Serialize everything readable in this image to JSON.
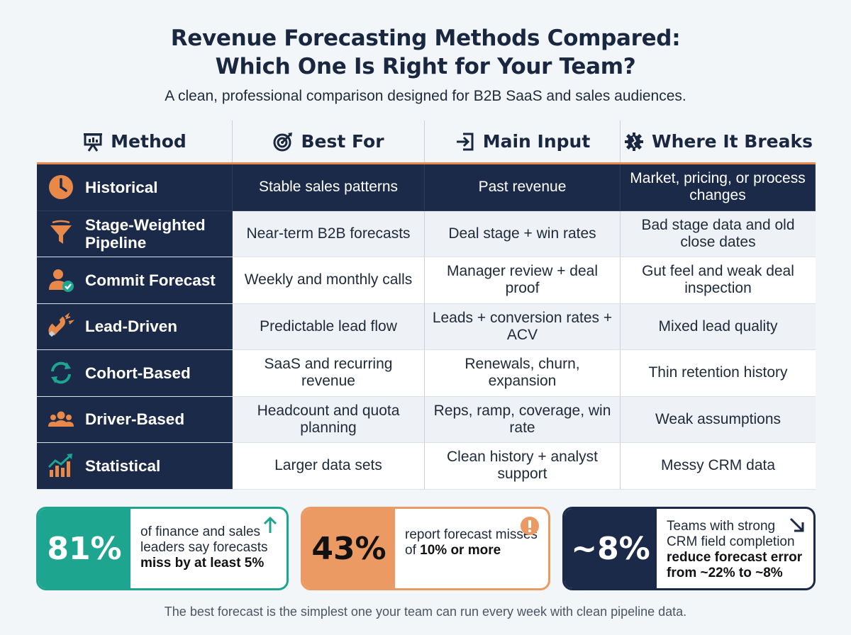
{
  "header": {
    "title_line1": "Revenue Forecasting Methods Compared:",
    "title_line2": "Which One Is Right for Your Team?",
    "subtitle": "A clean, professional comparison designed for B2B SaaS and sales audiences."
  },
  "table": {
    "columns": [
      "Method",
      "Best For",
      "Main Input",
      "Where It Breaks"
    ],
    "column_icons": [
      "presentation-icon",
      "target-icon",
      "input-icon",
      "gear-icon"
    ],
    "rows": [
      {
        "method": "Historical",
        "icon": "clock-icon",
        "best_for": "Stable sales patterns",
        "main_input": "Past revenue",
        "where_it_breaks": "Market, pricing, or process changes"
      },
      {
        "method": "Stage-Weighted Pipeline",
        "icon": "funnel-icon",
        "best_for": "Near-term B2B forecasts",
        "main_input": "Deal stage + win rates",
        "where_it_breaks": "Bad stage data and old close dates"
      },
      {
        "method": "Commit Forecast",
        "icon": "user-check-icon",
        "best_for": "Weekly and monthly calls",
        "main_input": "Manager review + deal proof",
        "where_it_breaks": "Gut feel and weak deal inspection"
      },
      {
        "method": "Lead-Driven",
        "icon": "magnet-icon",
        "best_for": "Predictable lead flow",
        "main_input": "Leads + conversion rates + ACV",
        "where_it_breaks": "Mixed lead quality"
      },
      {
        "method": "Cohort-Based",
        "icon": "refresh-icon",
        "best_for": "SaaS and recurring revenue",
        "main_input": "Renewals, churn, expansion",
        "where_it_breaks": "Thin retention history"
      },
      {
        "method": "Driver-Based",
        "icon": "team-icon",
        "best_for": "Headcount and quota planning",
        "main_input": "Reps, ramp, coverage, win rate",
        "where_it_breaks": "Weak assumptions"
      },
      {
        "method": "Statistical",
        "icon": "growth-chart-icon",
        "best_for": "Larger data sets",
        "main_input": "Clean history + analyst support",
        "where_it_breaks": "Messy CRM data"
      }
    ]
  },
  "stats": [
    {
      "value": "81%",
      "text_plain": "of finance and sales leaders say forecasts",
      "text_bold": "miss by at least 5%",
      "icon": "arrow-up-icon",
      "color": "#1ea58f"
    },
    {
      "value": "43%",
      "text_plain": "report forecast misses of",
      "text_bold": "10% or more",
      "icon": "alert-icon",
      "color": "#eb9a63"
    },
    {
      "value": "~8%",
      "text_plain": "Teams with strong CRM field completion",
      "text_bold": "reduce forecast error",
      "text_bold2": "from ~22% to ~8%",
      "icon": "arrow-down-right-icon",
      "color": "#1b2a48"
    }
  ],
  "footer": "The best forecast is the simplest one your team can run every week with clean pipeline data.",
  "colors": {
    "navy": "#1b2a48",
    "orange": "#e8894a",
    "teal": "#1ea58f"
  }
}
